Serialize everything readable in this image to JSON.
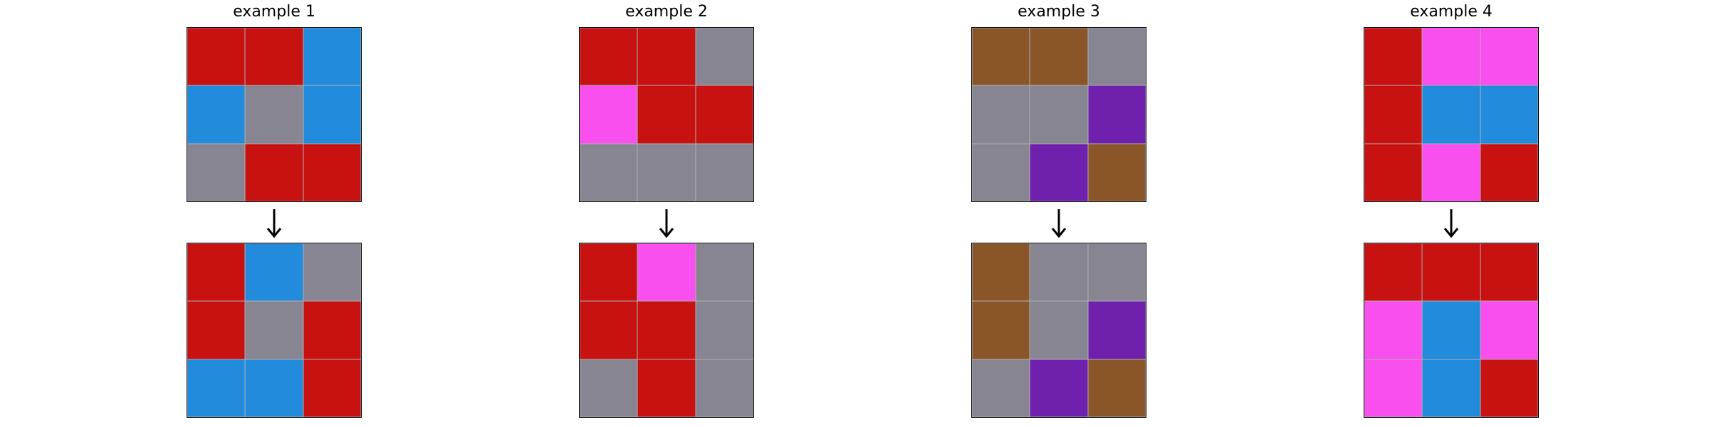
{
  "palette": {
    "red": "#C81111",
    "blue": "#228BDB",
    "gray": "#878592",
    "magenta": "#F84FEE",
    "brown": "#8A5629",
    "purple": "#6F21AE"
  },
  "examples": [
    {
      "title": "example 1",
      "input": [
        [
          "red",
          "red",
          "blue"
        ],
        [
          "blue",
          "gray",
          "blue"
        ],
        [
          "gray",
          "red",
          "red"
        ]
      ],
      "output": [
        [
          "red",
          "blue",
          "gray"
        ],
        [
          "red",
          "gray",
          "red"
        ],
        [
          "blue",
          "blue",
          "red"
        ]
      ]
    },
    {
      "title": "example 2",
      "input": [
        [
          "red",
          "red",
          "gray"
        ],
        [
          "magenta",
          "red",
          "red"
        ],
        [
          "gray",
          "gray",
          "gray"
        ]
      ],
      "output": [
        [
          "red",
          "magenta",
          "gray"
        ],
        [
          "red",
          "red",
          "gray"
        ],
        [
          "gray",
          "red",
          "gray"
        ]
      ]
    },
    {
      "title": "example 3",
      "input": [
        [
          "brown",
          "brown",
          "gray"
        ],
        [
          "gray",
          "gray",
          "purple"
        ],
        [
          "gray",
          "purple",
          "brown"
        ]
      ],
      "output": [
        [
          "brown",
          "gray",
          "gray"
        ],
        [
          "brown",
          "gray",
          "purple"
        ],
        [
          "gray",
          "purple",
          "brown"
        ]
      ]
    },
    {
      "title": "example 4",
      "input": [
        [
          "red",
          "magenta",
          "magenta"
        ],
        [
          "red",
          "blue",
          "blue"
        ],
        [
          "red",
          "magenta",
          "red"
        ]
      ],
      "output": [
        [
          "red",
          "red",
          "red"
        ],
        [
          "magenta",
          "blue",
          "magenta"
        ],
        [
          "magenta",
          "blue",
          "red"
        ]
      ]
    }
  ]
}
